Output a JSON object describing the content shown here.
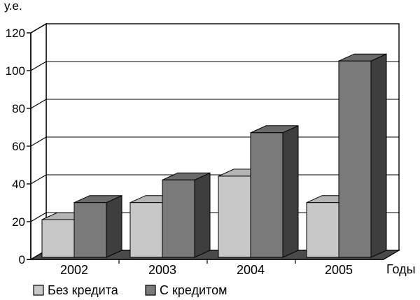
{
  "chart_data": {
    "type": "bar",
    "title": "",
    "ylabel": "у.е.",
    "xlabel": "Годы",
    "categories": [
      "2002",
      "2003",
      "2004",
      "2005"
    ],
    "series": [
      {
        "name": "Без кредита",
        "values": [
          20,
          29,
          43,
          29
        ],
        "color": "#c8c8c8"
      },
      {
        "name": "С кредитом",
        "values": [
          29,
          41,
          66,
          104
        ],
        "color": "#7a7a7a"
      }
    ],
    "ylim": [
      0,
      120
    ],
    "yticks": [
      "0",
      "20",
      "40",
      "60",
      "80",
      "100",
      "120"
    ],
    "grid": true,
    "legend_position": "bottom-left",
    "style": "3d"
  }
}
